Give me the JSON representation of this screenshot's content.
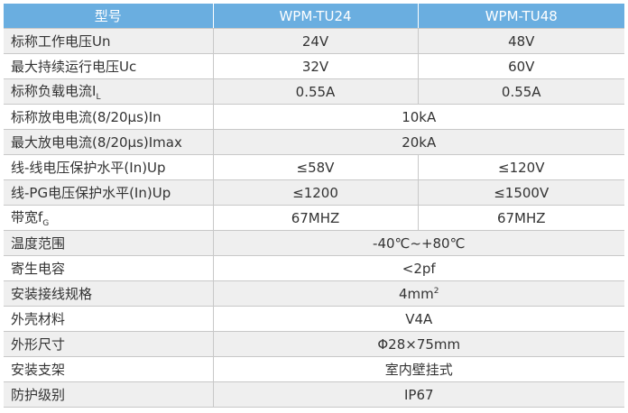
{
  "table": {
    "header": [
      "型号",
      "WPM-TU24",
      "WPM-TU48"
    ],
    "rows": [
      [
        "标称工作电压Un",
        "24V",
        "48V"
      ],
      [
        "最大持续运行电压Uc",
        "32V",
        "60V"
      ],
      [
        {
          "text": "标称负载电流I",
          "sub": "L"
        },
        "0.55A",
        "0.55A"
      ],
      [
        "标称放电电流(8/20μs)In",
        "10kA"
      ],
      [
        "最大放电电流(8/20μs)Imax",
        "20kA"
      ],
      [
        "线-线电压保护水平(In)Up",
        "≤58V",
        "≤120V"
      ],
      [
        "线-PG电压保护水平(In)Up",
        "≤1200",
        "≤1500V"
      ],
      [
        {
          "text": "带宽f",
          "sub": "G"
        },
        "67MHZ",
        "67MHZ"
      ],
      [
        "温度范围",
        "-40℃~+80℃"
      ],
      [
        "寄生电容",
        "<2pf"
      ],
      [
        "安装接线规格",
        {
          "text": "4mm",
          "sup": "2"
        }
      ],
      [
        "外壳材料",
        "V4A"
      ],
      [
        "外形尺寸",
        "Φ28×75mm"
      ],
      [
        "安装支架",
        "室内壁挂式"
      ],
      [
        "防护级别",
        "IP67"
      ]
    ]
  }
}
